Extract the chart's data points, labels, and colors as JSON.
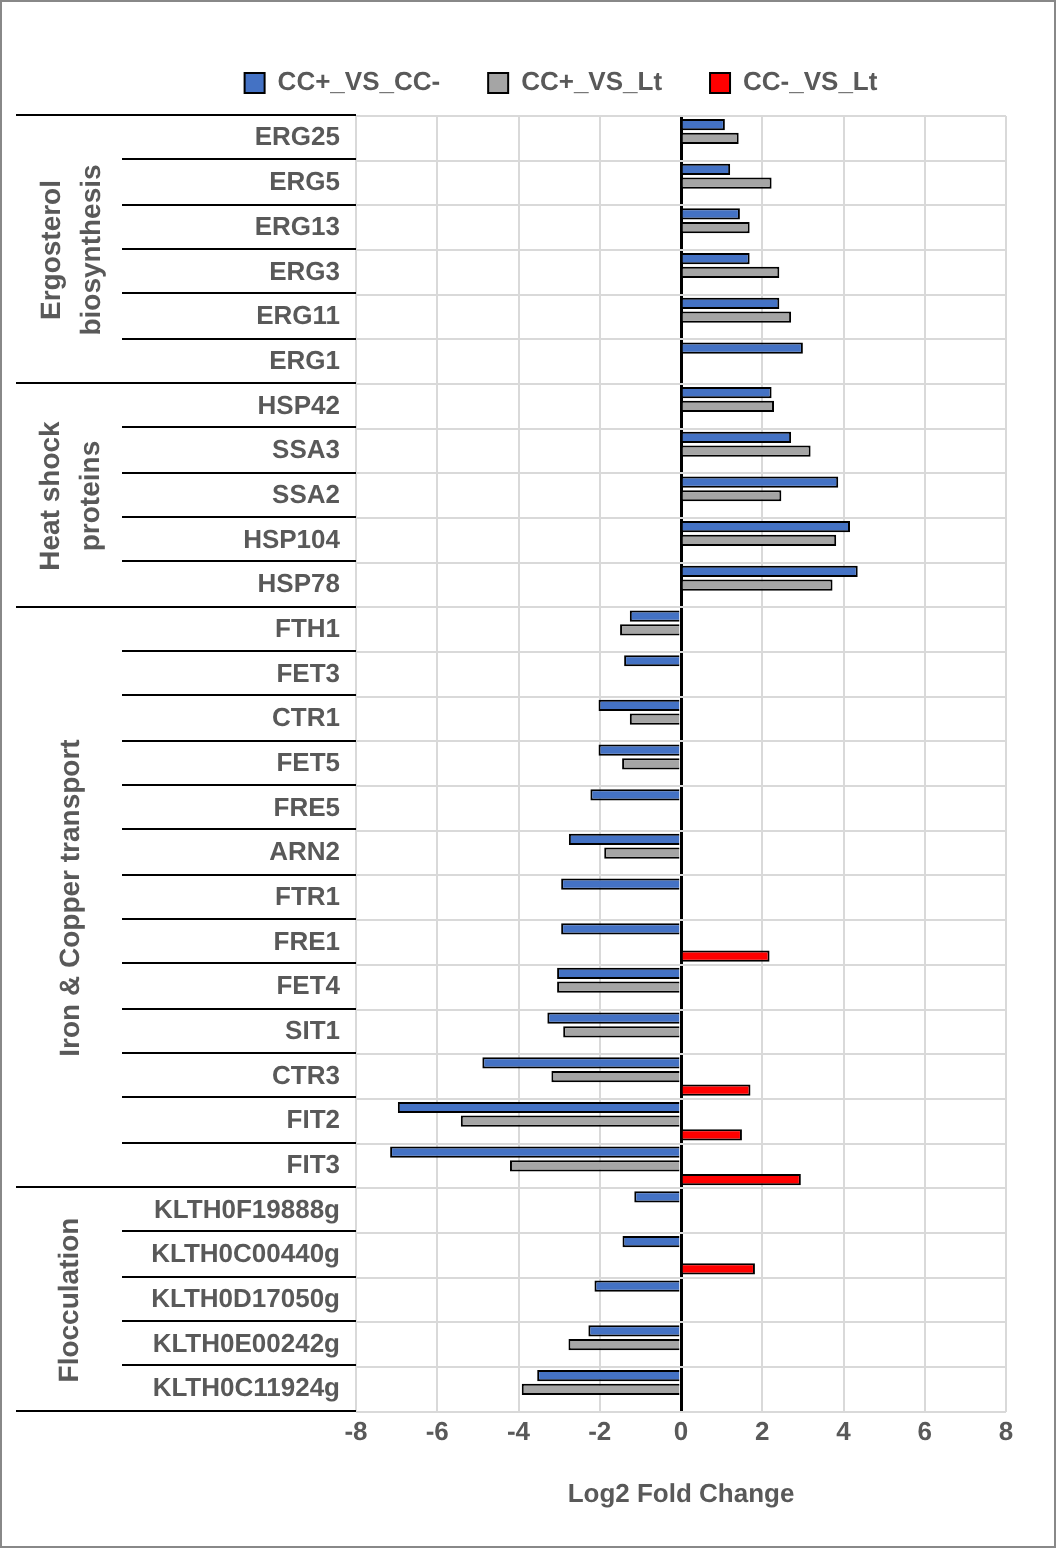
{
  "chart_data": {
    "type": "bar",
    "orientation": "horizontal",
    "xlabel": "Log2 Fold Change",
    "categories": [
      "ERG25",
      "ERG5",
      "ERG13",
      "ERG3",
      "ERG11",
      "ERG1",
      "HSP42",
      "SSA3",
      "SSA2",
      "HSP104",
      "HSP78",
      "FTH1",
      "FET3",
      "CTR1",
      "FET5",
      "FRE5",
      "ARN2",
      "FTR1",
      "FRE1",
      "FET4",
      "SIT1",
      "CTR3",
      "FIT2",
      "FIT3",
      "KLTH0F19888g",
      "KLTH0C00440g",
      "KLTH0D17050g",
      "KLTH0E00242g",
      "KLTH0C11924g"
    ],
    "series": [
      {
        "name": "CC+_VS_CC-",
        "color": "#4472c4",
        "values": [
          1.08,
          1.21,
          1.45,
          1.69,
          2.42,
          3.0,
          2.23,
          2.71,
          3.87,
          4.16,
          4.35,
          -1.26,
          -1.4,
          -2.03,
          -2.03,
          -2.23,
          -2.76,
          -2.95,
          -2.95,
          -3.05,
          -3.29,
          -4.89,
          -6.97,
          -7.16,
          -1.15,
          -1.44,
          -2.13,
          -2.28,
          -3.54
        ]
      },
      {
        "name": "CC+_VS_Lt",
        "color": "#a5a5a5",
        "values": [
          1.42,
          2.23,
          1.69,
          2.42,
          2.71,
          null,
          2.29,
          3.19,
          2.47,
          3.82,
          3.73,
          -1.5,
          null,
          -1.26,
          -1.45,
          null,
          -1.89,
          null,
          null,
          -3.05,
          -2.9,
          -3.19,
          -5.42,
          -4.21,
          null,
          null,
          null,
          -2.77,
          -3.92
        ]
      },
      {
        "name": "CC-_VS_Lt",
        "color": "#ff0000",
        "values": [
          null,
          null,
          null,
          null,
          null,
          null,
          null,
          null,
          null,
          null,
          null,
          null,
          null,
          null,
          null,
          null,
          null,
          null,
          2.18,
          null,
          null,
          1.71,
          1.5,
          2.95,
          null,
          1.82,
          null,
          null,
          null
        ]
      }
    ],
    "xlim": [
      -8,
      8
    ],
    "xticks": [
      -8,
      -6,
      -4,
      -2,
      0,
      2,
      4,
      6,
      8
    ],
    "grid": true,
    "legend": "top",
    "annotations": [
      "Ergosterol\nbiosynthesis",
      "Heat shock\nproteins",
      "Iron & Copper transport",
      "Flocculation"
    ]
  }
}
